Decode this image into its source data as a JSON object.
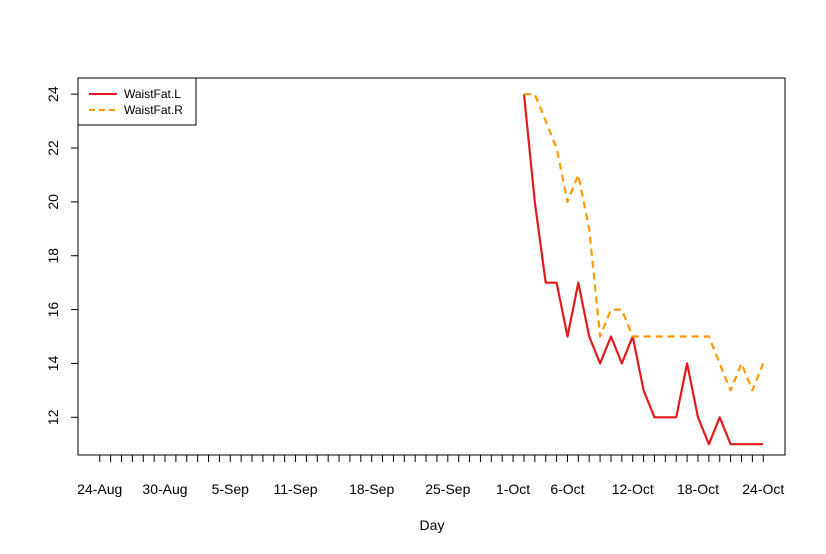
{
  "chart_data": {
    "type": "line",
    "title": "",
    "xlabel": "Day",
    "ylabel": "",
    "x_tick_labels": [
      "24-Aug",
      "30-Aug",
      "5-Sep",
      "11-Sep",
      "18-Sep",
      "25-Sep",
      "1-Oct",
      "6-Oct",
      "12-Oct",
      "18-Oct",
      "24-Oct"
    ],
    "x_tick_dates": [
      "2023-08-24",
      "2023-08-30",
      "2023-09-05",
      "2023-09-11",
      "2023-09-18",
      "2023-09-25",
      "2023-10-01",
      "2023-10-06",
      "2023-10-12",
      "2023-10-18",
      "2023-10-24"
    ],
    "xlim": [
      "2023-08-22",
      "2023-10-26"
    ],
    "y_ticks": [
      12,
      14,
      16,
      18,
      20,
      22,
      24
    ],
    "ylim": [
      10.6,
      24.6
    ],
    "grid": false,
    "legend_position": "top-left",
    "x": [
      "2023-10-02",
      "2023-10-03",
      "2023-10-04",
      "2023-10-05",
      "2023-10-06",
      "2023-10-07",
      "2023-10-08",
      "2023-10-09",
      "2023-10-10",
      "2023-10-11",
      "2023-10-12",
      "2023-10-13",
      "2023-10-14",
      "2023-10-15",
      "2023-10-16",
      "2023-10-17",
      "2023-10-18",
      "2023-10-19",
      "2023-10-20",
      "2023-10-21",
      "2023-10-22",
      "2023-10-23",
      "2023-10-24"
    ],
    "series": [
      {
        "name": "WaistFat.L",
        "color": "#e31a1c",
        "dash": "solid",
        "values": [
          24,
          20,
          17,
          17,
          15,
          17,
          15,
          14,
          15,
          14,
          15,
          13,
          12,
          12,
          12,
          14,
          12,
          11,
          12,
          11,
          11,
          11,
          11
        ]
      },
      {
        "name": "WaistFat.R",
        "color": "#ff9900",
        "dash": "dashed",
        "values": [
          24,
          24,
          23,
          22,
          20,
          21,
          19,
          15,
          16,
          16,
          15,
          15,
          15,
          15,
          15,
          15,
          15,
          15,
          14,
          13,
          14,
          13,
          14
        ]
      }
    ]
  }
}
